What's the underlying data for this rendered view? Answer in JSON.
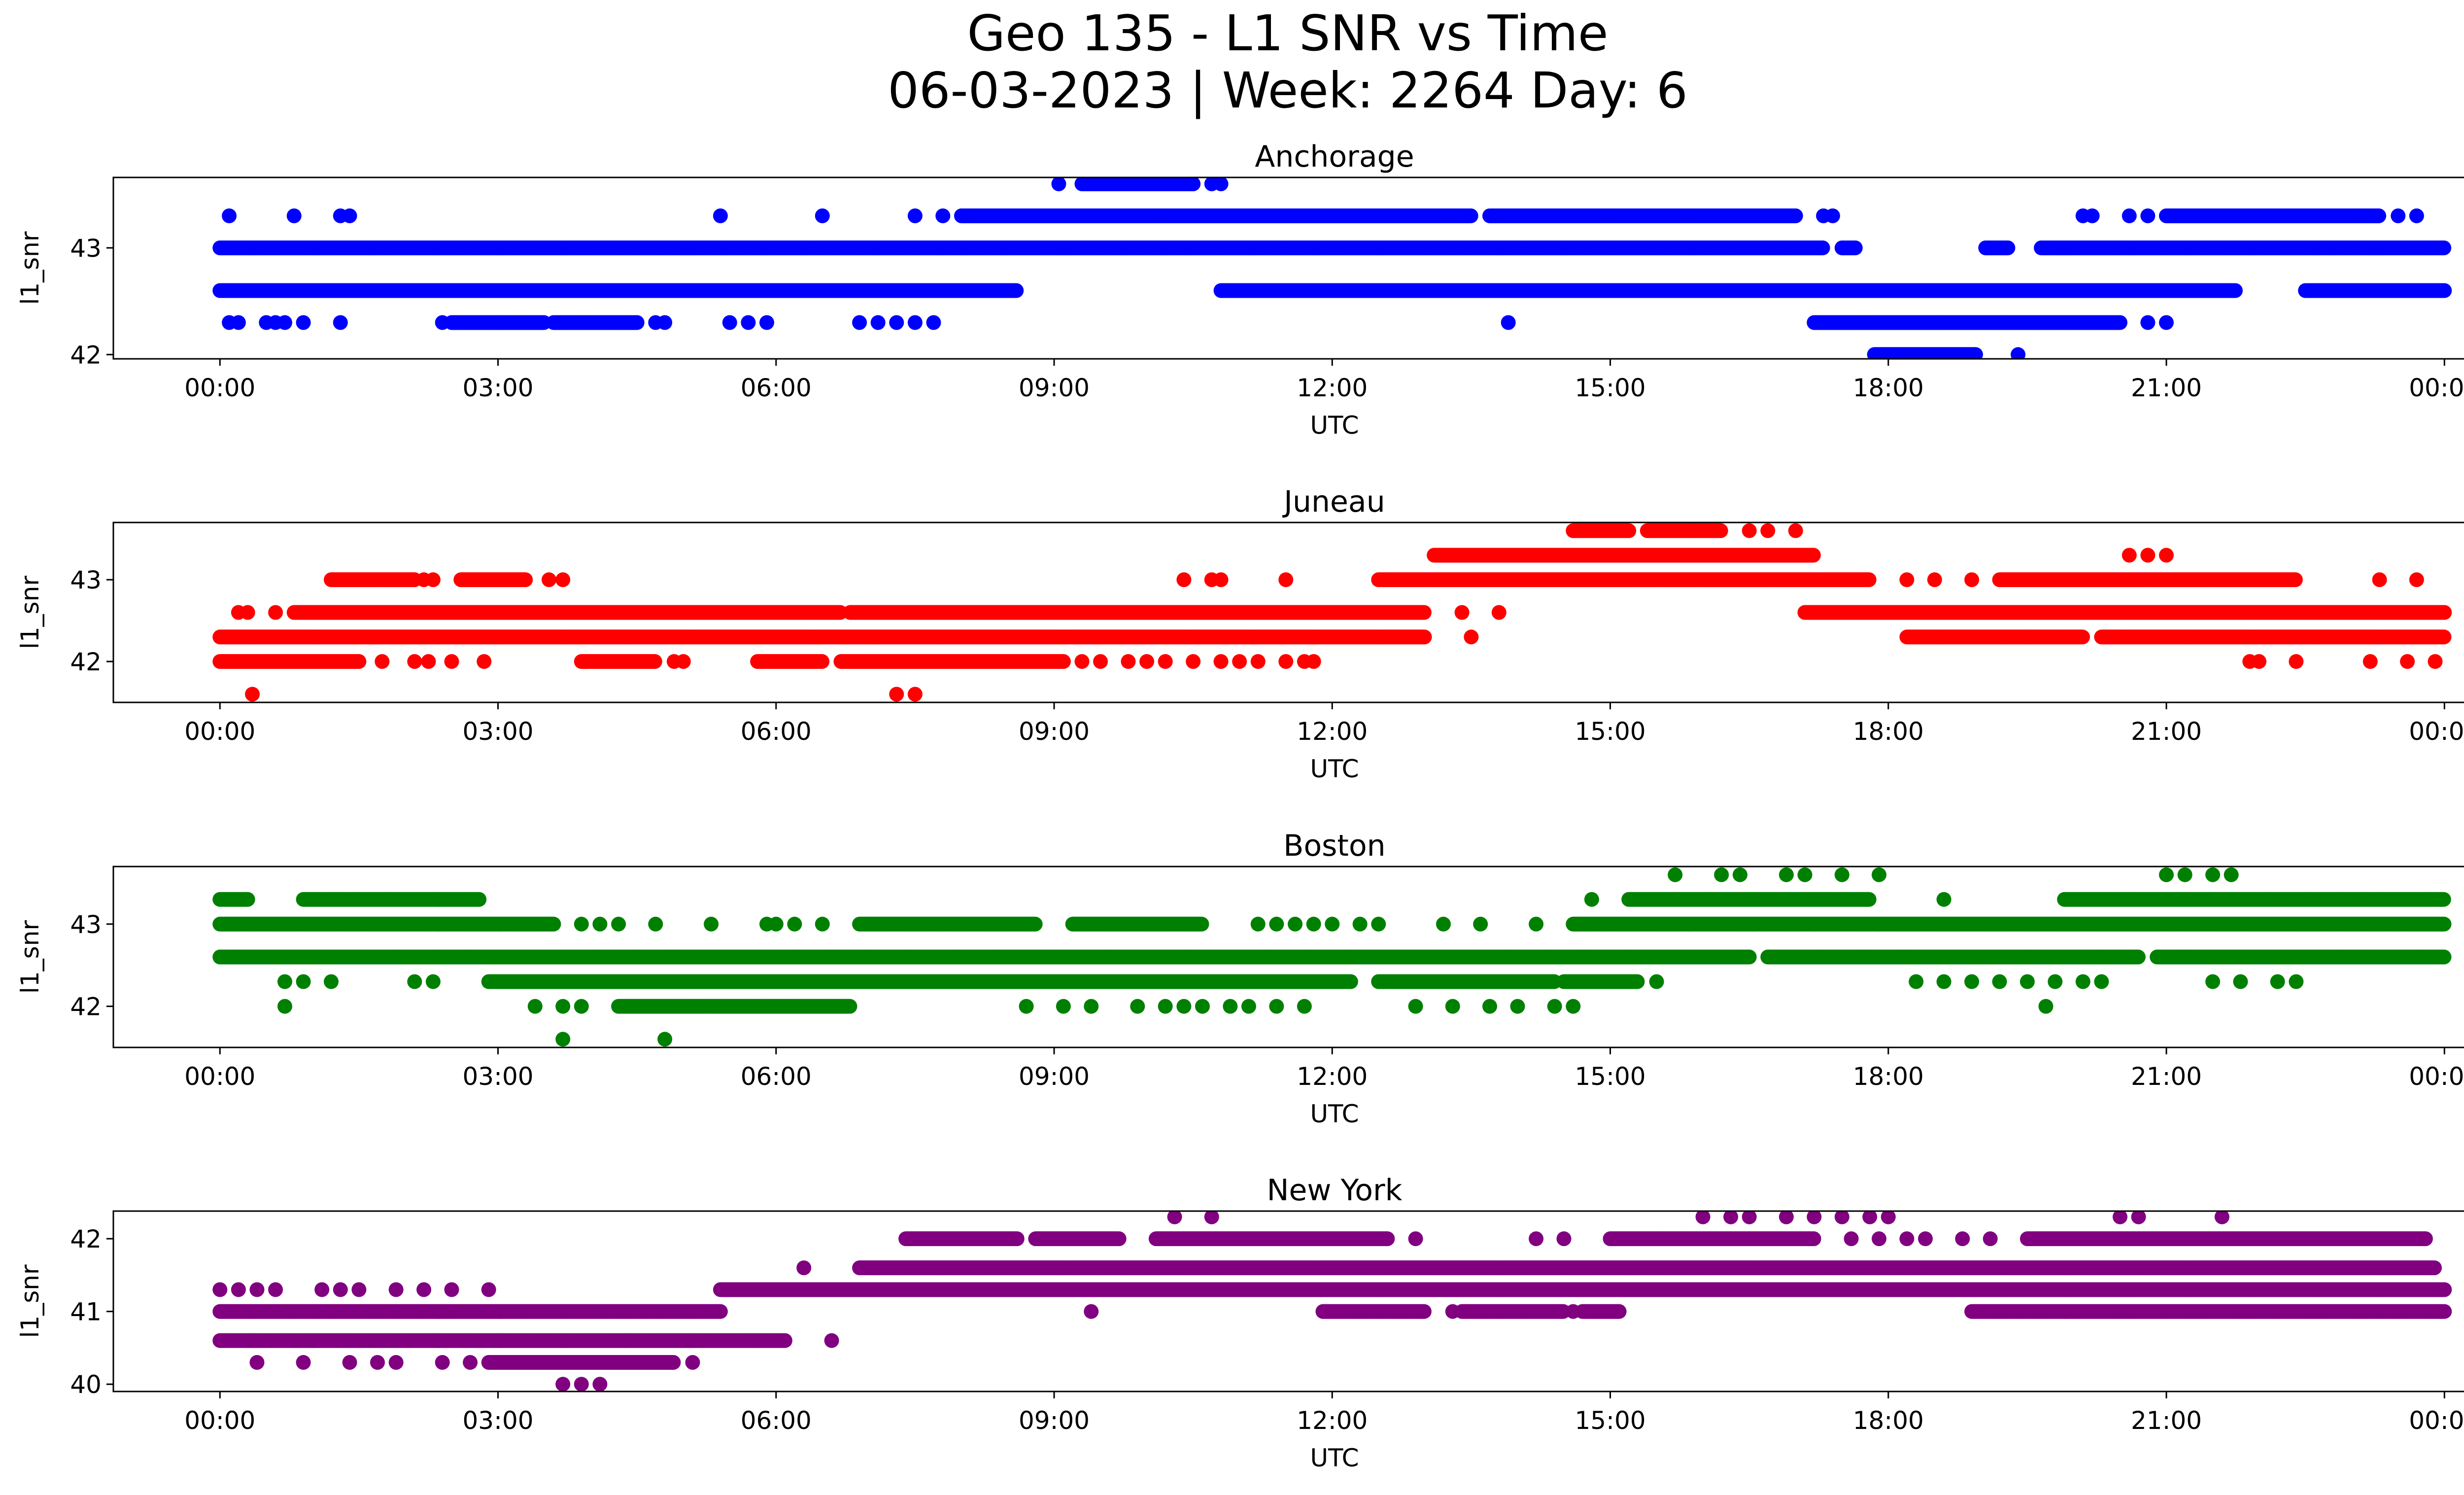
{
  "chart_data": {
    "type": "scatter",
    "suptitle_line1": "Geo 135 - L1 SNR vs Time",
    "suptitle_line2": "06-03-2023 | Week: 2264 Day: 6",
    "xlabel": "UTC",
    "ylabel": "l1_snr",
    "x_ticks": [
      "00:00",
      "03:00",
      "06:00",
      "09:00",
      "12:00",
      "15:00",
      "18:00",
      "21:00",
      "00:00"
    ],
    "x_range_hours": [
      -1.15,
      25.2
    ],
    "grid": false,
    "panels": [
      {
        "title": "Anchorage",
        "color": "#0000ff",
        "ylim": [
          41.96,
          43.66
        ],
        "yticks": [
          42,
          43
        ],
        "bands": [
          {
            "y": 43.0,
            "segments": [
              [
                0.0,
                17.3
              ],
              [
                17.5,
                17.65
              ],
              [
                19.05,
                19.3
              ],
              [
                19.65,
                24.0
              ]
            ]
          },
          {
            "y": 42.6,
            "segments": [
              [
                0.0,
                8.6
              ],
              [
                10.8,
                21.75
              ],
              [
                22.5,
                24.0
              ]
            ]
          },
          {
            "y": 43.3,
            "segments": [
              [
                8.0,
                13.5
              ],
              [
                13.7,
                17.0
              ],
              [
                21.0,
                23.3
              ]
            ],
            "points": [
              0.1,
              0.8,
              1.3,
              1.4,
              5.4,
              6.5,
              7.5,
              7.8,
              17.3,
              17.4,
              20.1,
              20.2,
              20.6,
              20.8,
              23.5,
              23.7
            ]
          },
          {
            "y": 42.3,
            "segments": [
              [
                2.5,
                3.5
              ],
              [
                3.6,
                4.5
              ],
              [
                17.2,
                20.5
              ]
            ],
            "points": [
              0.1,
              0.2,
              0.5,
              0.6,
              0.7,
              0.9,
              1.3,
              2.4,
              4.7,
              4.8,
              5.5,
              5.7,
              5.9,
              6.9,
              7.1,
              7.3,
              7.5,
              7.7,
              13.9,
              20.8,
              21.0
            ]
          },
          {
            "y": 43.6,
            "segments": [
              [
                9.3,
                10.5
              ]
            ],
            "points": [
              9.05,
              10.7,
              10.8
            ]
          },
          {
            "y": 42.0,
            "segments": [
              [
                17.85,
                18.95
              ]
            ],
            "points": [
              19.4
            ]
          }
        ]
      },
      {
        "title": "Juneau",
        "color": "#ff0000",
        "ylim": [
          41.5,
          43.7
        ],
        "yticks": [
          42,
          43
        ],
        "bands": [
          {
            "y": 42.3,
            "segments": [
              [
                0.0,
                13.0
              ],
              [
                18.2,
                20.1
              ],
              [
                20.3,
                24.0
              ]
            ],
            "points": [
              13.5,
              19.5
            ]
          },
          {
            "y": 42.6,
            "segments": [
              [
                0.8,
                6.7
              ],
              [
                6.8,
                13.0
              ],
              [
                17.1,
                24.0
              ]
            ],
            "points": [
              0.2,
              0.3,
              0.6,
              7.2,
              7.4,
              7.6,
              13.4,
              13.8
            ]
          },
          {
            "y": 42.0,
            "segments": [
              [
                0.0,
                1.5
              ],
              [
                3.9,
                4.7
              ],
              [
                5.8,
                6.5
              ],
              [
                6.7,
                9.1
              ]
            ],
            "points": [
              1.75,
              2.1,
              2.25,
              2.5,
              2.85,
              4.9,
              5.0,
              6.9,
              9.3,
              9.5,
              9.8,
              10.0,
              10.2,
              10.5,
              10.8,
              11.0,
              11.2,
              11.5,
              11.7,
              11.8,
              21.9,
              22.0,
              22.4,
              23.2,
              23.6,
              23.9
            ]
          },
          {
            "y": 43.0,
            "segments": [
              [
                1.2,
                2.1
              ],
              [
                2.6,
                3.3
              ],
              [
                12.5,
                17.8
              ],
              [
                19.2,
                22.4
              ]
            ],
            "points": [
              2.2,
              2.3,
              3.55,
              3.7,
              10.4,
              10.7,
              10.8,
              11.5,
              18.2,
              18.5,
              18.9,
              23.3,
              23.7
            ]
          },
          {
            "y": 43.3,
            "segments": [
              [
                13.1,
                17.2
              ]
            ],
            "points": [
              20.6,
              20.8,
              21.0
            ]
          },
          {
            "y": 43.6,
            "segments": [
              [
                14.6,
                15.2
              ],
              [
                15.4,
                16.2
              ]
            ],
            "points": [
              16.5,
              16.7,
              17.0
            ]
          },
          {
            "y": 41.6,
            "segments": [],
            "points": [
              0.35,
              7.3,
              7.5
            ]
          }
        ]
      },
      {
        "title": "Boston",
        "color": "#008000",
        "ylim": [
          41.5,
          43.7
        ],
        "yticks": [
          42,
          43
        ],
        "bands": [
          {
            "y": 42.6,
            "segments": [
              [
                0.0,
                16.5
              ],
              [
                16.7,
                20.7
              ],
              [
                20.9,
                24.0
              ]
            ]
          },
          {
            "y": 43.0,
            "segments": [
              [
                0.0,
                3.6
              ],
              [
                6.9,
                8.8
              ],
              [
                9.2,
                10.6
              ],
              [
                14.6,
                24.0
              ]
            ],
            "points": [
              3.9,
              4.1,
              4.3,
              4.7,
              5.3,
              5.9,
              6.0,
              6.2,
              6.5,
              11.2,
              11.4,
              11.6,
              11.8,
              12.0,
              12.3,
              12.5,
              13.2,
              13.6,
              14.2
            ]
          },
          {
            "y": 42.3,
            "segments": [
              [
                2.9,
                12.2
              ],
              [
                12.5,
                14.4
              ],
              [
                14.5,
                15.3
              ]
            ],
            "points": [
              0.7,
              0.9,
              1.2,
              2.1,
              2.3,
              15.5,
              18.3,
              18.6,
              18.9,
              19.2,
              19.5,
              19.8,
              20.1,
              20.3,
              21.5,
              21.8,
              22.2,
              22.4
            ]
          },
          {
            "y": 43.3,
            "segments": [
              [
                0.0,
                0.3
              ],
              [
                0.9,
                2.8
              ],
              [
                15.2,
                17.8
              ],
              [
                19.9,
                24.0
              ]
            ],
            "points": [
              14.8,
              18.6
            ]
          },
          {
            "y": 42.0,
            "segments": [
              [
                4.3,
                6.8
              ]
            ],
            "points": [
              0.7,
              3.4,
              3.7,
              3.9,
              8.7,
              9.1,
              9.4,
              9.9,
              10.2,
              10.4,
              10.6,
              10.9,
              11.1,
              11.4,
              11.7,
              12.9,
              13.3,
              13.7,
              14.0,
              14.4,
              14.6,
              19.7
            ]
          },
          {
            "y": 43.6,
            "segments": [],
            "points": [
              15.7,
              16.2,
              16.4,
              16.9,
              17.1,
              17.5,
              17.9,
              21.0,
              21.2,
              21.5,
              21.7
            ]
          },
          {
            "y": 41.6,
            "segments": [],
            "points": [
              3.7,
              4.8
            ]
          }
        ]
      },
      {
        "title": "New York",
        "color": "#800080",
        "ylim": [
          39.9,
          42.38
        ],
        "yticks": [
          40,
          41,
          42
        ],
        "bands": [
          {
            "y": 41.0,
            "segments": [
              [
                0.0,
                5.4
              ],
              [
                11.9,
                13.0
              ],
              [
                13.4,
                14.5
              ],
              [
                14.7,
                15.1
              ],
              [
                18.9,
                24.0
              ]
            ],
            "points": [
              9.4,
              13.3,
              14.6
            ]
          },
          {
            "y": 41.3,
            "segments": [
              [
                5.4,
                24.0
              ]
            ],
            "points": [
              0.0,
              0.2,
              0.4,
              0.6,
              1.1,
              1.3,
              1.5,
              1.9,
              2.2,
              2.5,
              2.9
            ]
          },
          {
            "y": 41.6,
            "segments": [
              [
                6.9,
                23.9
              ]
            ],
            "points": [
              6.3
            ]
          },
          {
            "y": 40.6,
            "segments": [
              [
                0.0,
                6.1
              ]
            ],
            "points": [
              6.6
            ]
          },
          {
            "y": 40.3,
            "segments": [
              [
                2.9,
                4.9
              ]
            ],
            "points": [
              0.4,
              0.9,
              1.4,
              1.7,
              1.9,
              2.4,
              2.7,
              5.1
            ]
          },
          {
            "y": 42.0,
            "segments": [
              [
                7.4,
                8.6
              ],
              [
                8.8,
                9.7
              ],
              [
                10.1,
                12.6
              ],
              [
                15.0,
                17.2
              ],
              [
                19.5,
                23.8
              ]
            ],
            "points": [
              12.9,
              14.2,
              14.5,
              15.5,
              15.8,
              17.6,
              17.9,
              18.2,
              18.4,
              18.8,
              19.1
            ]
          },
          {
            "y": 42.3,
            "segments": [],
            "points": [
              10.3,
              10.7,
              16.0,
              16.3,
              16.5,
              16.9,
              17.2,
              17.5,
              17.8,
              18.0,
              20.5,
              20.7,
              21.6
            ]
          },
          {
            "y": 40.0,
            "segments": [],
            "points": [
              3.7,
              3.9,
              4.1
            ]
          }
        ]
      }
    ]
  }
}
